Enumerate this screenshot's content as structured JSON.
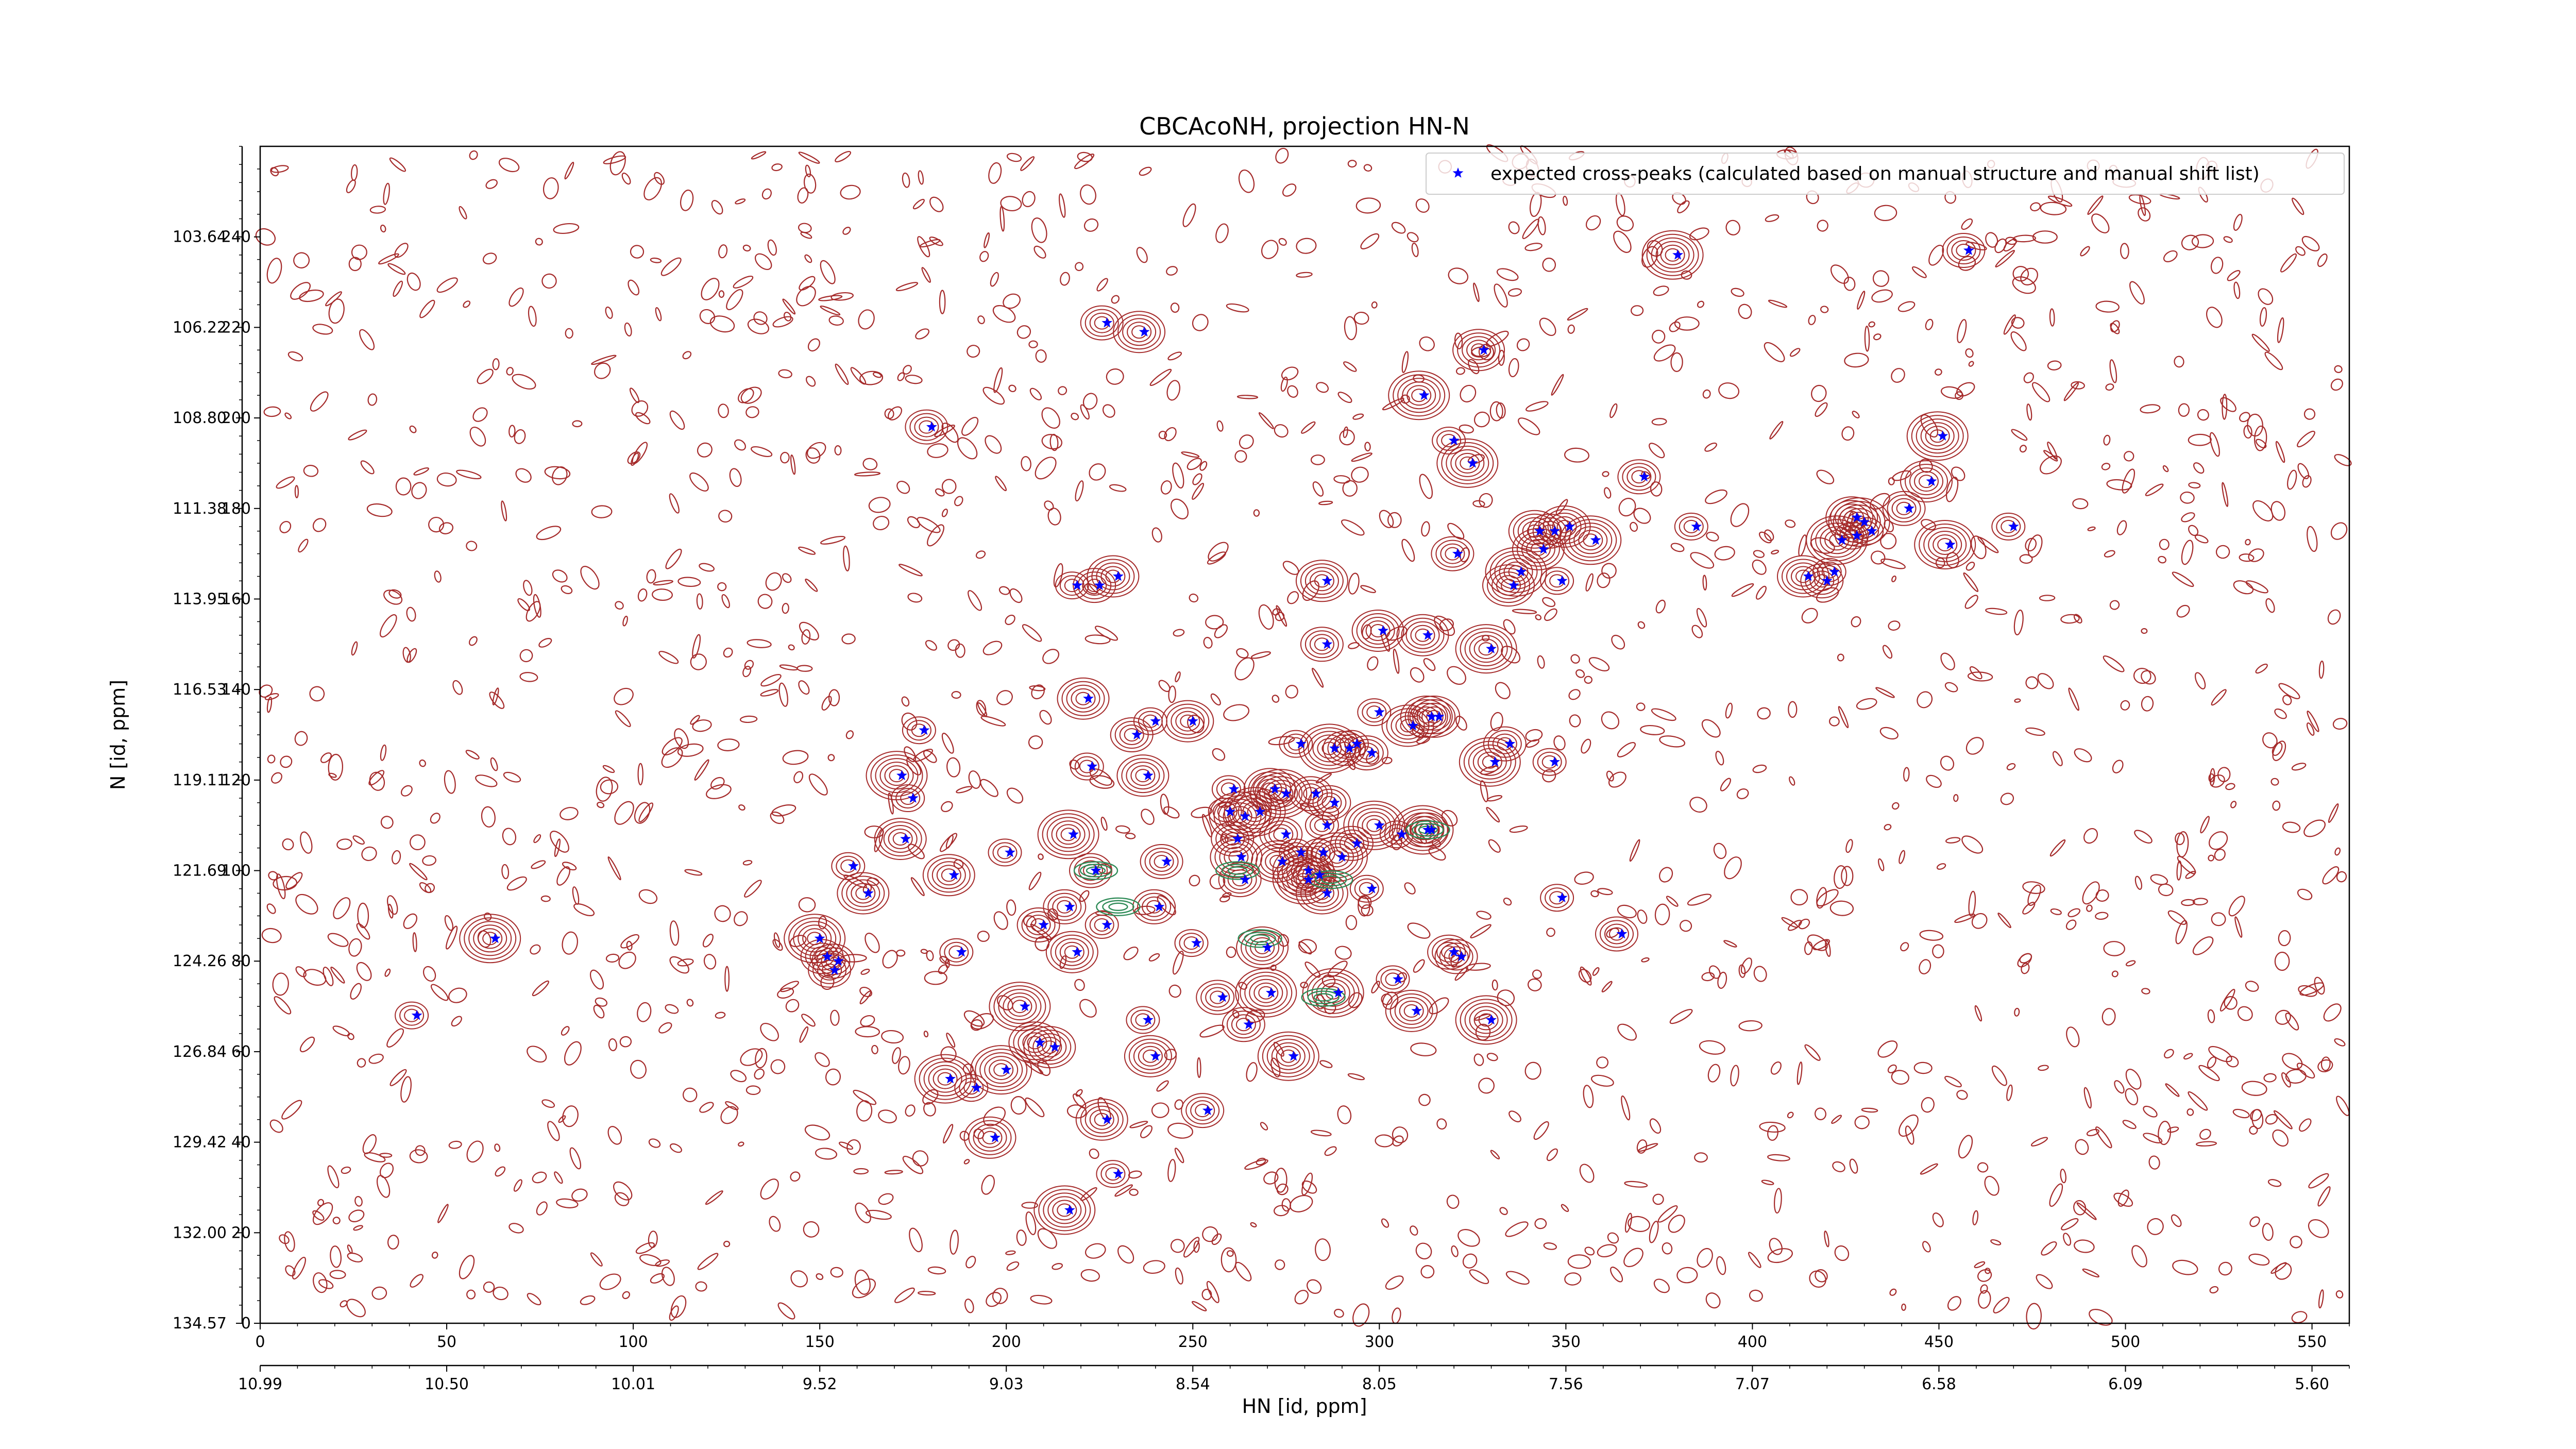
{
  "chart_data": {
    "type": "scatter",
    "title": "CBCAcoNH, projection HN-N",
    "xlabel": "HN [id, ppm]",
    "ylabel": "N [id, ppm]",
    "xlim": [
      0,
      560
    ],
    "ylim": [
      0,
      260
    ],
    "x_ticks": [
      0,
      50,
      100,
      150,
      200,
      250,
      300,
      350,
      400,
      450,
      500,
      550
    ],
    "y_ticks": [
      0,
      20,
      40,
      60,
      80,
      100,
      120,
      140,
      160,
      180,
      200,
      220,
      240
    ],
    "secondary_x_ticks": [
      {
        "value": 0,
        "label": "10.99"
      },
      {
        "value": 50,
        "label": "10.50"
      },
      {
        "value": 100,
        "label": "10.01"
      },
      {
        "value": 150,
        "label": "9.52"
      },
      {
        "value": 200,
        "label": "9.03"
      },
      {
        "value": 250,
        "label": "8.54"
      },
      {
        "value": 300,
        "label": "8.05"
      },
      {
        "value": 350,
        "label": "7.56"
      },
      {
        "value": 400,
        "label": "7.07"
      },
      {
        "value": 450,
        "label": "6.58"
      },
      {
        "value": 500,
        "label": "6.09"
      },
      {
        "value": 550,
        "label": "5.60"
      }
    ],
    "secondary_y_ticks": [
      {
        "value": 0,
        "label": "134.57"
      },
      {
        "value": 20,
        "label": "132.00"
      },
      {
        "value": 40,
        "label": "129.42"
      },
      {
        "value": 60,
        "label": "126.84"
      },
      {
        "value": 80,
        "label": "124.26"
      },
      {
        "value": 100,
        "label": "121.69"
      },
      {
        "value": 120,
        "label": "119.11"
      },
      {
        "value": 140,
        "label": "116.53"
      },
      {
        "value": 160,
        "label": "113.95"
      },
      {
        "value": 180,
        "label": "111.38"
      },
      {
        "value": 200,
        "label": "108.80"
      },
      {
        "value": 220,
        "label": "106.22"
      },
      {
        "value": 240,
        "label": "103.64"
      }
    ],
    "legend": {
      "placement": "top-right",
      "label": "expected cross-peaks (calculated based on manual structure and manual shift list)"
    },
    "grid": false,
    "series": [
      {
        "name": "expected cross-peaks (calculated based on manual structure and manual shift list)",
        "color": "#0000ff",
        "marker": "star",
        "points": [
          [
            63,
            85
          ],
          [
            42,
            68
          ],
          [
            150,
            85
          ],
          [
            152,
            81
          ],
          [
            154,
            78
          ],
          [
            155,
            80
          ],
          [
            159,
            101
          ],
          [
            163,
            95
          ],
          [
            172,
            121
          ],
          [
            173,
            107
          ],
          [
            175,
            116
          ],
          [
            178,
            131
          ],
          [
            180,
            198
          ],
          [
            186,
            99
          ],
          [
            188,
            82
          ],
          [
            185,
            54
          ],
          [
            192,
            52
          ],
          [
            197,
            41
          ],
          [
            200,
            56
          ],
          [
            201,
            104
          ],
          [
            205,
            70
          ],
          [
            209,
            62
          ],
          [
            210,
            88
          ],
          [
            213,
            61
          ],
          [
            217,
            92
          ],
          [
            218,
            108
          ],
          [
            219,
            82
          ],
          [
            217,
            25
          ],
          [
            219,
            163
          ],
          [
            222,
            138
          ],
          [
            223,
            123
          ],
          [
            224,
            100
          ],
          [
            225,
            163
          ],
          [
            227,
            221
          ],
          [
            227,
            88
          ],
          [
            227,
            45
          ],
          [
            230,
            33
          ],
          [
            230,
            165
          ],
          [
            235,
            130
          ],
          [
            237,
            219
          ],
          [
            238,
            121
          ],
          [
            238,
            67
          ],
          [
            240,
            59
          ],
          [
            240,
            133
          ],
          [
            241,
            92
          ],
          [
            243,
            102
          ],
          [
            250,
            133
          ],
          [
            251,
            84
          ],
          [
            254,
            47
          ],
          [
            258,
            72
          ],
          [
            260,
            113
          ],
          [
            261,
            118
          ],
          [
            262,
            107
          ],
          [
            263,
            103
          ],
          [
            264,
            112
          ],
          [
            264,
            98
          ],
          [
            265,
            66
          ],
          [
            268,
            113
          ],
          [
            270,
            83
          ],
          [
            271,
            73
          ],
          [
            272,
            118
          ],
          [
            274,
            102
          ],
          [
            275,
            108
          ],
          [
            275,
            117
          ],
          [
            277,
            59
          ],
          [
            279,
            128
          ],
          [
            279,
            104
          ],
          [
            281,
            100
          ],
          [
            281,
            98
          ],
          [
            283,
            117
          ],
          [
            284,
            99
          ],
          [
            285,
            104
          ],
          [
            286,
            110
          ],
          [
            286,
            95
          ],
          [
            286,
            150
          ],
          [
            286,
            164
          ],
          [
            288,
            115
          ],
          [
            288,
            127
          ],
          [
            289,
            73
          ],
          [
            290,
            103
          ],
          [
            292,
            127
          ],
          [
            294,
            128
          ],
          [
            294,
            106
          ],
          [
            298,
            96
          ],
          [
            298,
            126
          ],
          [
            300,
            135
          ],
          [
            300,
            110
          ],
          [
            301,
            153
          ],
          [
            305,
            76
          ],
          [
            306,
            108
          ],
          [
            309,
            132
          ],
          [
            310,
            69
          ],
          [
            312,
            205
          ],
          [
            313,
            109
          ],
          [
            314,
            109
          ],
          [
            313,
            152
          ],
          [
            314,
            134
          ],
          [
            316,
            134
          ],
          [
            320,
            195
          ],
          [
            320,
            82
          ],
          [
            321,
            170
          ],
          [
            322,
            81
          ],
          [
            325,
            190
          ],
          [
            328,
            215
          ],
          [
            330,
            67
          ],
          [
            330,
            149
          ],
          [
            331,
            124
          ],
          [
            335,
            128
          ],
          [
            336,
            163
          ],
          [
            338,
            166
          ],
          [
            343,
            175
          ],
          [
            344,
            171
          ],
          [
            347,
            175
          ],
          [
            347,
            124
          ],
          [
            349,
            164
          ],
          [
            349,
            94
          ],
          [
            351,
            176
          ],
          [
            358,
            173
          ],
          [
            365,
            86
          ],
          [
            371,
            187
          ],
          [
            380,
            236
          ],
          [
            385,
            176
          ],
          [
            415,
            165
          ],
          [
            420,
            164
          ],
          [
            422,
            166
          ],
          [
            424,
            173
          ],
          [
            428,
            178
          ],
          [
            428,
            174
          ],
          [
            430,
            177
          ],
          [
            432,
            175
          ],
          [
            442,
            180
          ],
          [
            448,
            186
          ],
          [
            451,
            196
          ],
          [
            453,
            172
          ],
          [
            458,
            237
          ],
          [
            470,
            176
          ]
        ]
      }
    ],
    "contours": [
      {
        "name": "positive",
        "color": "#a52a2a"
      },
      {
        "name": "negative",
        "color": "#2e8b57"
      }
    ]
  }
}
